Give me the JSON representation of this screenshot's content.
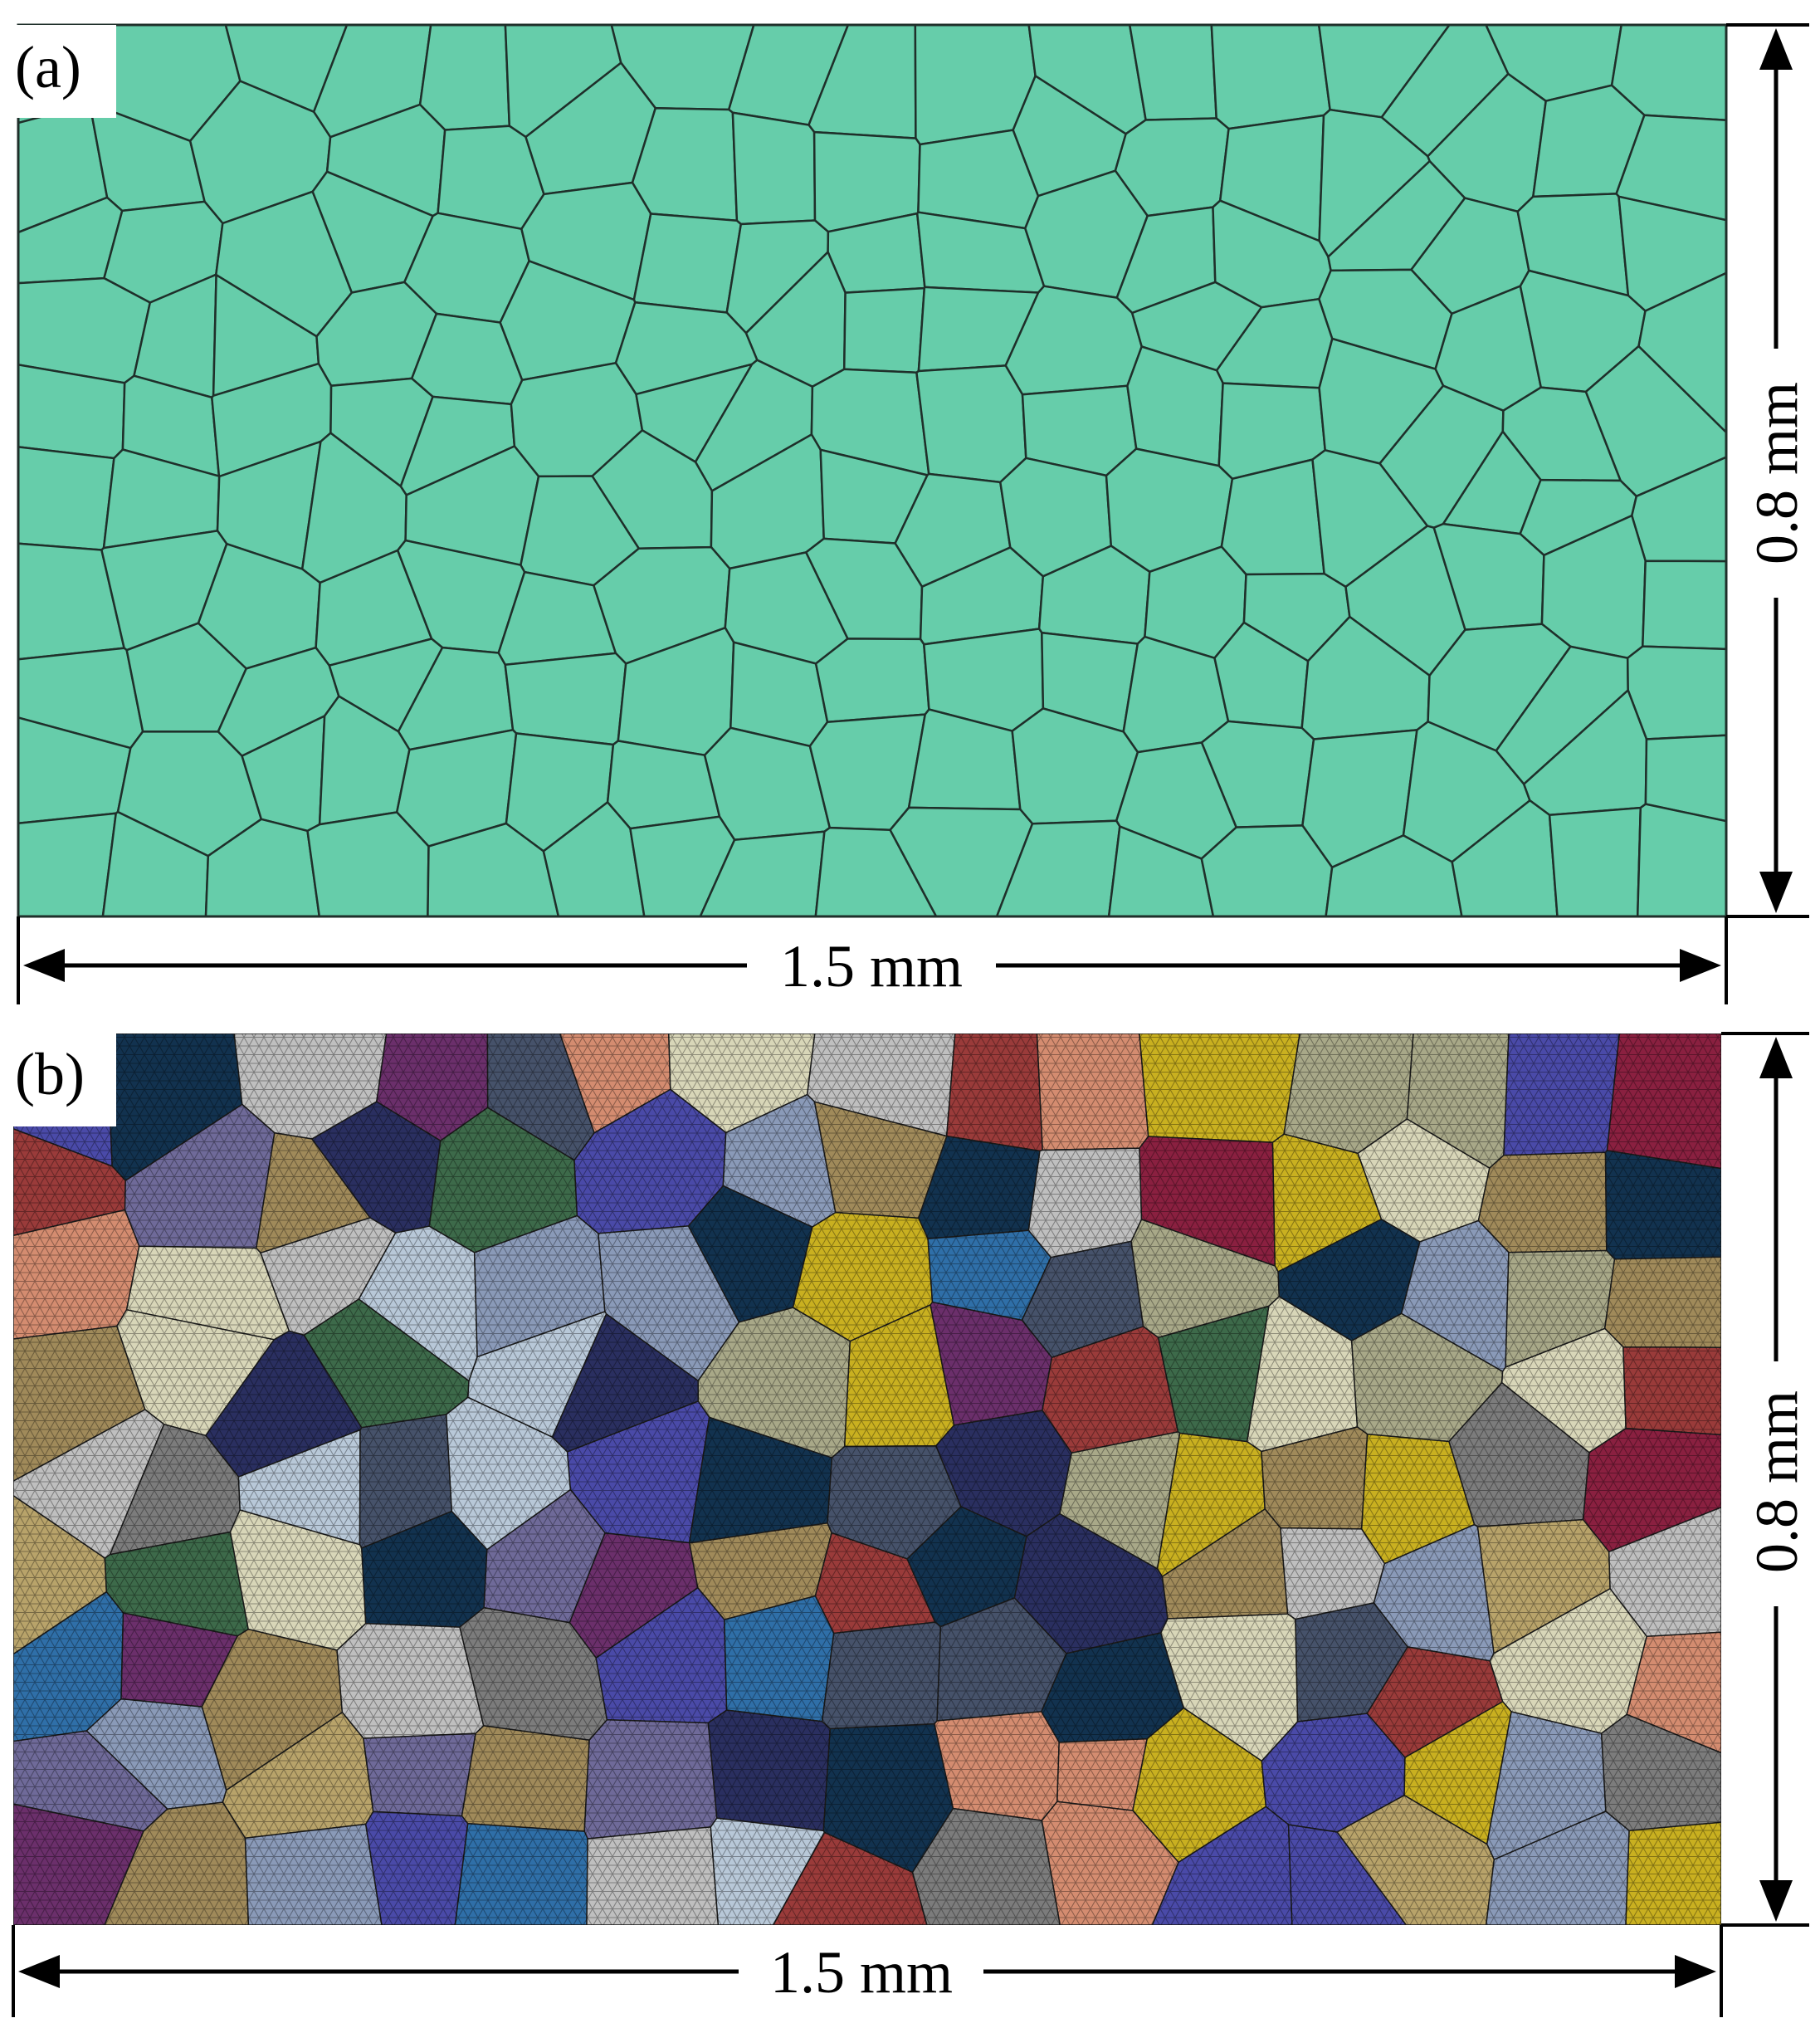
{
  "figure": {
    "panels": [
      {
        "id": "a",
        "label": "(a)",
        "style": "single-color grain boundaries",
        "fill_color": "#66CDAA",
        "boundary_color": "#1f2f2a",
        "width_dim": "1.5 mm",
        "height_dim": "0.8 mm"
      },
      {
        "id": "b",
        "label": "(b)",
        "style": "multi-color grains with triangular mesh",
        "palette": [
          "#2f6fa8",
          "#d8d6b8",
          "#9a3b3a",
          "#b8a36a",
          "#6b2f6b",
          "#c9b020",
          "#8a9ab8",
          "#3d6a4a",
          "#d48c70",
          "#2a2f60",
          "#6f6a99",
          "#a08a5a",
          "#8a2040",
          "#7c7c7c",
          "#46526a",
          "#bfbfbf",
          "#b8c8d8",
          "#a8a888",
          "#4a4aa8",
          "#12324f"
        ],
        "mesh_color": "#222222",
        "width_dim": "1.5 mm",
        "height_dim": "0.8 mm"
      }
    ]
  }
}
